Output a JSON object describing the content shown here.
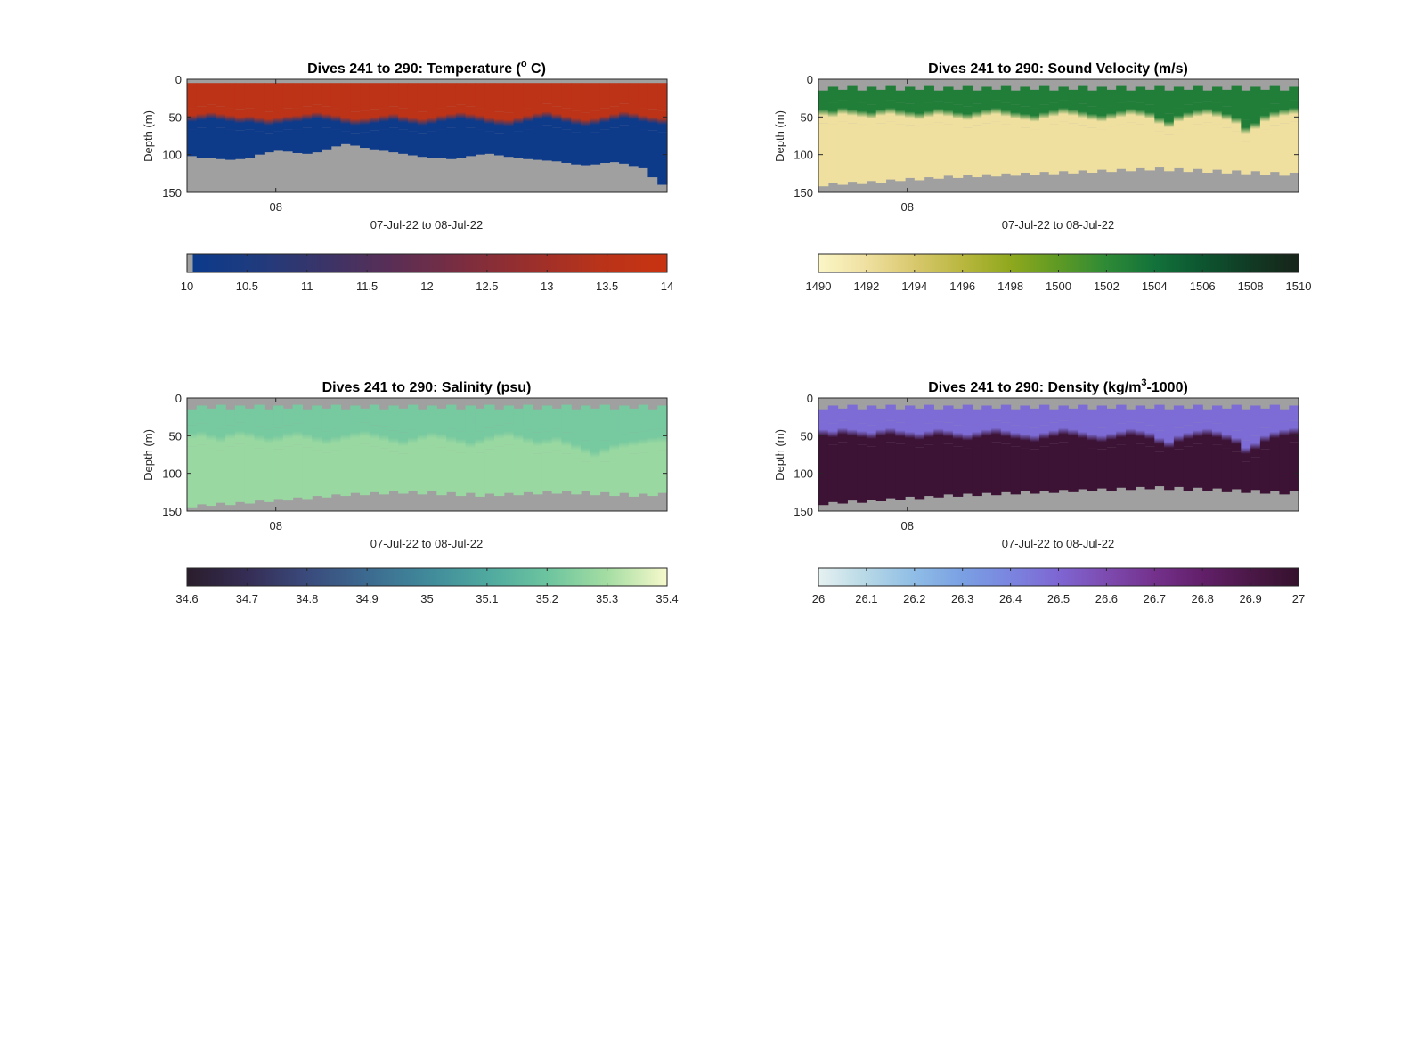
{
  "chart_data": [
    {
      "type": "heatmap",
      "title": "Dives 241 to 290: Temperature (° C)",
      "title_main": "Dives 241 to 290: Temperature (",
      "title_sup": "o",
      "title_end": " C)",
      "ylabel": "Depth (m)",
      "xlabel": "07-Jul-22 to 08-Jul-22",
      "xticks": [
        "08"
      ],
      "yticks": [
        0,
        50,
        100,
        150
      ],
      "ylim": [
        0,
        150
      ],
      "dives": 50,
      "colorbar": {
        "min": 10,
        "max": 14,
        "ticks": [
          "10",
          "10.5",
          "11",
          "11.5",
          "12",
          "12.5",
          "13",
          "13.5",
          "14"
        ],
        "colors": [
          "#0a3a8c",
          "#1f3b7e",
          "#3a3468",
          "#5a2e55",
          "#7a2d40",
          "#9a2f2c",
          "#b8331a",
          "#c93311"
        ]
      },
      "profile": {
        "surface_top": 5,
        "upper_value": 13.6,
        "thermocline_depth": [
          52,
          50,
          48,
          50,
          52,
          54,
          53,
          55,
          57,
          55,
          53,
          52,
          50,
          48,
          50,
          52,
          55,
          57,
          56,
          54,
          52,
          50,
          53,
          55,
          57,
          55,
          52,
          50,
          48,
          50,
          52,
          55,
          57,
          58,
          55,
          52,
          49,
          47,
          50,
          53,
          56,
          58,
          56,
          53,
          50,
          47,
          49,
          52,
          54,
          56
        ],
        "lower_value": 10.1,
        "bottom_depth": [
          102,
          104,
          105,
          106,
          107,
          106,
          104,
          100,
          97,
          95,
          96,
          98,
          99,
          97,
          93,
          89,
          86,
          88,
          91,
          93,
          95,
          97,
          99,
          101,
          103,
          104,
          105,
          106,
          104,
          102,
          100,
          99,
          101,
          103,
          104,
          106,
          107,
          108,
          109,
          111,
          113,
          114,
          113,
          111,
          110,
          112,
          115,
          118,
          130,
          140
        ]
      }
    },
    {
      "type": "heatmap",
      "title": "Dives 241 to 290: Sound Velocity (m/s)",
      "title_main": "Dives 241 to 290: Sound Velocity (m/s)",
      "title_sup": "",
      "title_end": "",
      "ylabel": "Depth (m)",
      "xlabel": "07-Jul-22 to 08-Jul-22",
      "xticks": [
        "08"
      ],
      "yticks": [
        0,
        50,
        100,
        150
      ],
      "ylim": [
        0,
        150
      ],
      "dives": 50,
      "colorbar": {
        "min": 1490,
        "max": 1510,
        "ticks": [
          "1490",
          "1492",
          "1494",
          "1496",
          "1498",
          "1500",
          "1502",
          "1504",
          "1506",
          "1508",
          "1510"
        ],
        "colors": [
          "#fbf6c6",
          "#efe0a0",
          "#d8c86d",
          "#b9b73f",
          "#8fa81d",
          "#5e9a24",
          "#2e8a36",
          "#12723a",
          "#0d5530",
          "#113a24",
          "#172419"
        ]
      },
      "profile": {
        "surface_top": [
          15,
          10,
          14,
          9,
          15,
          10,
          14,
          9,
          15,
          10,
          14,
          9,
          15,
          10,
          14,
          9,
          15,
          10,
          14,
          9,
          15,
          10,
          14,
          9,
          15,
          10,
          14,
          9,
          15,
          10,
          14,
          9,
          15,
          10,
          14,
          9,
          15,
          10,
          14,
          9,
          15,
          10,
          14,
          9,
          15,
          10,
          14,
          9,
          15,
          10
        ],
        "upper_value": 1503,
        "thermocline_depth": [
          44,
          46,
          42,
          44,
          46,
          48,
          44,
          42,
          45,
          47,
          49,
          46,
          43,
          45,
          48,
          50,
          47,
          44,
          42,
          45,
          48,
          50,
          52,
          48,
          45,
          42,
          44,
          47,
          50,
          52,
          49,
          46,
          43,
          45,
          48,
          55,
          60,
          52,
          48,
          45,
          43,
          46,
          50,
          55,
          68,
          62,
          52,
          47,
          44,
          42
        ],
        "lower_value": 1492,
        "bottom_depth": [
          142,
          138,
          140,
          136,
          139,
          135,
          137,
          133,
          135,
          131,
          134,
          130,
          132,
          128,
          131,
          127,
          130,
          126,
          129,
          125,
          128,
          124,
          127,
          123,
          126,
          122,
          125,
          121,
          124,
          120,
          123,
          119,
          122,
          118,
          121,
          117,
          122,
          118,
          123,
          119,
          124,
          120,
          125,
          121,
          126,
          122,
          127,
          123,
          128,
          124
        ]
      }
    },
    {
      "type": "heatmap",
      "title": "Dives 241 to 290: Salinity (psu)",
      "title_main": "Dives 241 to 290: Salinity (psu)",
      "title_sup": "",
      "title_end": "",
      "ylabel": "Depth (m)",
      "xlabel": "07-Jul-22 to 08-Jul-22",
      "xticks": [
        "08"
      ],
      "yticks": [
        0,
        50,
        100,
        150
      ],
      "ylim": [
        0,
        150
      ],
      "dives": 50,
      "colorbar": {
        "min": 34.6,
        "max": 35.4,
        "ticks": [
          "34.6",
          "34.7",
          "34.8",
          "34.9",
          "35",
          "35.1",
          "35.2",
          "35.3",
          "35.4"
        ],
        "colors": [
          "#2a1d2b",
          "#352d55",
          "#3a4a7c",
          "#3c6a90",
          "#40899a",
          "#4fa99f",
          "#6cc49f",
          "#a4dda2",
          "#f7f9cc"
        ]
      },
      "profile": {
        "surface_top": [
          15,
          10,
          14,
          9,
          15,
          10,
          14,
          9,
          15,
          10,
          14,
          9,
          15,
          10,
          14,
          9,
          15,
          10,
          14,
          9,
          15,
          10,
          14,
          9,
          15,
          10,
          14,
          9,
          15,
          10,
          14,
          9,
          15,
          10,
          14,
          9,
          15,
          10,
          14,
          9,
          15,
          10,
          14,
          9,
          15,
          10,
          14,
          9,
          15,
          10
        ],
        "upper_value": 35.22,
        "thermocline_depth": [
          50,
          48,
          52,
          55,
          50,
          47,
          49,
          53,
          56,
          54,
          50,
          48,
          51,
          55,
          58,
          55,
          52,
          49,
          47,
          50,
          53,
          57,
          60,
          56,
          52,
          49,
          51,
          55,
          58,
          62,
          58,
          54,
          50,
          48,
          52,
          56,
          60,
          58,
          55,
          60,
          65,
          70,
          75,
          70,
          65,
          62,
          60,
          58,
          56,
          55
        ],
        "lower_value": 35.28,
        "bottom_depth": [
          145,
          141,
          143,
          139,
          142,
          138,
          140,
          136,
          138,
          134,
          136,
          132,
          134,
          130,
          132,
          128,
          130,
          126,
          129,
          125,
          128,
          124,
          127,
          123,
          128,
          124,
          129,
          125,
          130,
          126,
          131,
          127,
          130,
          126,
          129,
          125,
          128,
          124,
          127,
          123,
          128,
          124,
          129,
          125,
          130,
          126,
          131,
          127,
          130,
          126
        ]
      }
    },
    {
      "type": "heatmap",
      "title": "Dives 241 to 290: Density (kg/m³-1000)",
      "title_main": "Dives 241 to 290: Density (kg/m",
      "title_sup": "3",
      "title_end": "-1000)",
      "ylabel": "Depth (m)",
      "xlabel": "07-Jul-22 to 08-Jul-22",
      "xticks": [
        "08"
      ],
      "yticks": [
        0,
        50,
        100,
        150
      ],
      "ylim": [
        0,
        150
      ],
      "dives": 50,
      "colorbar": {
        "min": 26,
        "max": 27,
        "ticks": [
          "26",
          "26.1",
          "26.2",
          "26.3",
          "26.4",
          "26.5",
          "26.6",
          "26.7",
          "26.8",
          "26.9",
          "27"
        ],
        "colors": [
          "#e6f1f1",
          "#b6d8e6",
          "#8fbde6",
          "#7aa0e3",
          "#7a85df",
          "#7e66d2",
          "#7d4bb0",
          "#74318c",
          "#621f69",
          "#4b1847",
          "#35112d"
        ]
      },
      "profile": {
        "surface_top": [
          15,
          10,
          14,
          9,
          15,
          10,
          14,
          9,
          15,
          10,
          14,
          9,
          15,
          10,
          14,
          9,
          15,
          10,
          14,
          9,
          15,
          10,
          14,
          9,
          15,
          10,
          14,
          9,
          15,
          10,
          14,
          9,
          15,
          10,
          14,
          9,
          15,
          10,
          14,
          9,
          15,
          10,
          14,
          9,
          15,
          10,
          14,
          9,
          15,
          10
        ],
        "upper_value": 26.48,
        "thermocline_depth": [
          46,
          48,
          44,
          46,
          48,
          50,
          46,
          44,
          47,
          49,
          51,
          48,
          45,
          47,
          50,
          52,
          49,
          46,
          44,
          47,
          50,
          52,
          54,
          50,
          47,
          44,
          46,
          49,
          52,
          54,
          51,
          48,
          45,
          47,
          50,
          57,
          62,
          54,
          50,
          47,
          45,
          48,
          52,
          57,
          70,
          64,
          54,
          49,
          46,
          44
        ],
        "lower_value": 26.97,
        "bottom_depth": [
          142,
          138,
          140,
          136,
          139,
          135,
          137,
          133,
          135,
          131,
          134,
          130,
          132,
          128,
          131,
          127,
          130,
          126,
          129,
          125,
          128,
          124,
          127,
          123,
          126,
          122,
          125,
          121,
          124,
          120,
          123,
          119,
          122,
          118,
          121,
          117,
          122,
          118,
          123,
          119,
          124,
          120,
          125,
          121,
          126,
          122,
          127,
          123,
          128,
          124
        ]
      }
    }
  ]
}
